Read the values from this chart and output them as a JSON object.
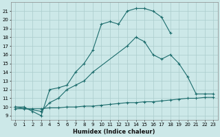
{
  "xlabel": "Humidex (Indice chaleur)",
  "bg_color": "#cce8e8",
  "grid_color": "#aacccc",
  "line_color": "#1a6b6b",
  "xlim": [
    -0.5,
    23.5
  ],
  "ylim": [
    8.5,
    22
  ],
  "yticks": [
    9,
    10,
    11,
    12,
    13,
    14,
    15,
    16,
    17,
    18,
    19,
    20,
    21
  ],
  "xticks": [
    0,
    1,
    2,
    3,
    4,
    5,
    6,
    7,
    8,
    9,
    10,
    11,
    12,
    13,
    14,
    15,
    16,
    17,
    18,
    19,
    20,
    21,
    22,
    23
  ],
  "line1_x": [
    0,
    1,
    2,
    3,
    4,
    5,
    6,
    7,
    8,
    9,
    10,
    11,
    12,
    13,
    14,
    15,
    16,
    17,
    18
  ],
  "line1_y": [
    10,
    10,
    9.5,
    9.0,
    12,
    12.2,
    12.5,
    14,
    15,
    16.5,
    19.5,
    19.8,
    19.5,
    21.0,
    21.3,
    21.3,
    21.0,
    20.3,
    18.5
  ],
  "line2_x": [
    0,
    3,
    4,
    5,
    6,
    7,
    8,
    9,
    13,
    14,
    15,
    16,
    17,
    18,
    19,
    20,
    21,
    22,
    23
  ],
  "line2_y": [
    10,
    9.5,
    10.5,
    11,
    12,
    12.5,
    13,
    14,
    17,
    18,
    17.5,
    16,
    15.5,
    16,
    15,
    13.5,
    11.5,
    11.5,
    11.5
  ],
  "line3_x": [
    0,
    1,
    2,
    3,
    4,
    5,
    6,
    7,
    8,
    9,
    10,
    11,
    12,
    13,
    14,
    15,
    16,
    17,
    18,
    19,
    20,
    21,
    22,
    23
  ],
  "line3_y": [
    9.8,
    9.8,
    9.8,
    9.8,
    9.9,
    9.9,
    10.0,
    10.0,
    10.1,
    10.1,
    10.2,
    10.3,
    10.4,
    10.5,
    10.5,
    10.6,
    10.6,
    10.7,
    10.8,
    10.9,
    11.0,
    11.0,
    11.1,
    11.1
  ]
}
